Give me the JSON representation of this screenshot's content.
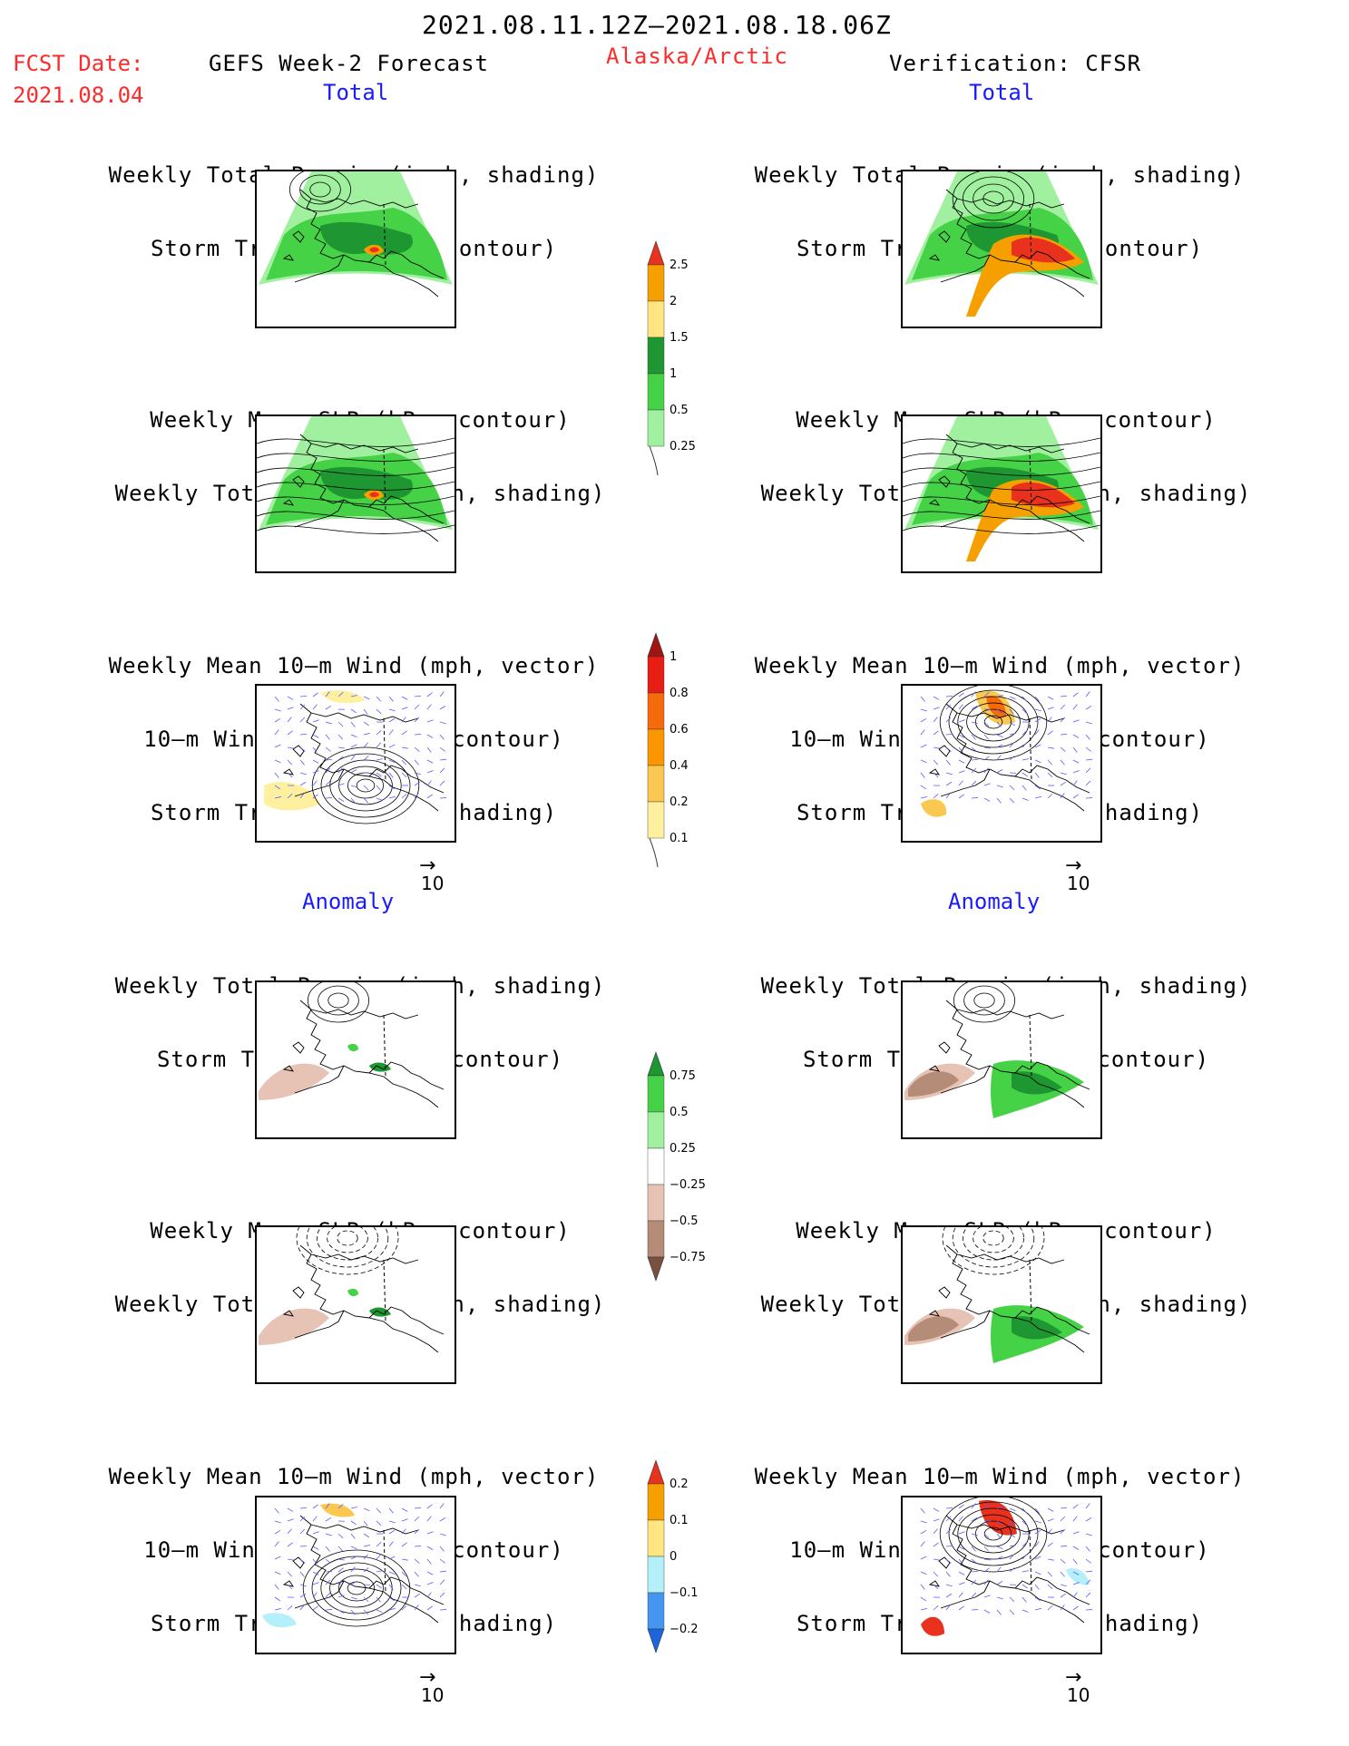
{
  "header": {
    "date_range": "2021.08.11.12Z—2021.08.18.06Z",
    "fcst_label": "FCST Date:",
    "fcst_date": "2021.08.04",
    "forecast_title": "GEFS Week-2 Forecast",
    "region": "Alaska/Arctic",
    "verification": "Verification: CFSR"
  },
  "sections": {
    "total_left": "Total",
    "total_right": "Total",
    "anomaly_left": "Anomaly",
    "anomaly_right": "Anomaly"
  },
  "panels": {
    "precip_storm": [
      "Weekly Total Precip (inch, shading)",
      "Storm Track Density (contour)"
    ],
    "slp_precip": [
      "Weekly Mean SLP (hPa, contour)",
      "Weekly Total Precip (inch, shading)"
    ],
    "wind_storm": [
      "Weekly Mean 10—m Wind (mph, vector)",
      "10—m Wind Speed (mph, contour)",
      "Storm Track Density (shading)"
    ]
  },
  "vector_scale": "10",
  "colors": {
    "header_red": "#ff2a2a",
    "section_blue": "#1a1aff",
    "vector_blue": "#5a5aff"
  },
  "colorbars": {
    "precip_total": {
      "labels": [
        "2.5",
        "2",
        "1.5",
        "1",
        "0.5",
        "0.25"
      ],
      "colors": [
        "#e8321e",
        "#f5a000",
        "#ffe680",
        "#1e9632",
        "#46d246",
        "#a0f0a0"
      ]
    },
    "storm_total": {
      "labels": [
        "1",
        "0.8",
        "0.6",
        "0.4",
        "0.2",
        "0.1"
      ],
      "colors": [
        "#a01414",
        "#e61e14",
        "#f56a0a",
        "#fa9600",
        "#fac850",
        "#fff0a0"
      ]
    },
    "precip_anom": {
      "labels": [
        "0.75",
        "0.5",
        "0.25",
        "−0.25",
        "−0.5",
        "−0.75"
      ],
      "colors": [
        "#1e9632",
        "#46d246",
        "#a0f0a0",
        "#ffffff",
        "#e6c3b4",
        "#b48c78",
        "#785040"
      ]
    },
    "storm_anom": {
      "labels": [
        "0.2",
        "0.1",
        "0",
        "−0.1",
        "−0.2"
      ],
      "colors": [
        "#e8321e",
        "#f5a000",
        "#ffe680",
        "#b4f0fa",
        "#4696f0",
        "#1e64dc"
      ]
    }
  }
}
